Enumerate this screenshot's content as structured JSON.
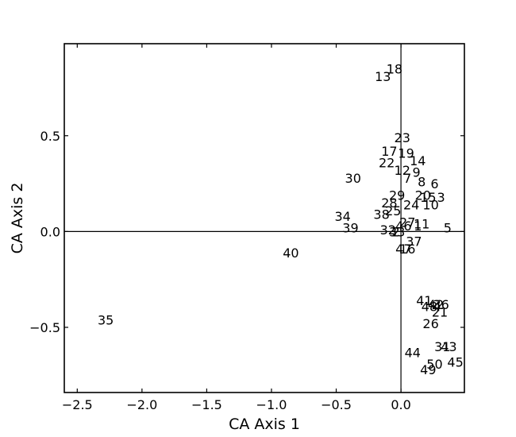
{
  "chart_data": {
    "type": "scatter",
    "title": "",
    "xlabel": "CA Axis 1",
    "ylabel": "CA Axis 2",
    "xlim": [
      -2.6,
      0.49
    ],
    "ylim": [
      -0.84,
      0.98
    ],
    "xticks": [
      -2.5,
      -2.0,
      -1.5,
      -1.0,
      -0.5,
      0.0
    ],
    "xtick_labels": [
      "−2.5",
      "−2.0",
      "−1.5",
      "−1.0",
      "−0.5",
      "0.0"
    ],
    "yticks": [
      -0.5,
      0.0,
      0.5
    ],
    "ytick_labels": [
      "−0.5",
      "0.0",
      "0.5"
    ],
    "reference_lines": {
      "x": 0.0,
      "y": 0.0
    },
    "grid": false,
    "legend": "none",
    "points": [
      {
        "label": "18",
        "x": -0.05,
        "y": 0.85
      },
      {
        "label": "13",
        "x": -0.14,
        "y": 0.81
      },
      {
        "label": "23",
        "x": 0.01,
        "y": 0.49
      },
      {
        "label": "17",
        "x": -0.09,
        "y": 0.42
      },
      {
        "label": "19",
        "x": 0.04,
        "y": 0.41
      },
      {
        "label": "14",
        "x": 0.13,
        "y": 0.37
      },
      {
        "label": "22",
        "x": -0.11,
        "y": 0.36
      },
      {
        "label": "12",
        "x": 0.01,
        "y": 0.32
      },
      {
        "label": "9",
        "x": 0.12,
        "y": 0.31
      },
      {
        "label": "7",
        "x": 0.05,
        "y": 0.28
      },
      {
        "label": "30",
        "x": -0.37,
        "y": 0.28
      },
      {
        "label": "8",
        "x": 0.16,
        "y": 0.26
      },
      {
        "label": "6",
        "x": 0.26,
        "y": 0.25
      },
      {
        "label": "20",
        "x": 0.17,
        "y": 0.19
      },
      {
        "label": "15",
        "x": 0.21,
        "y": 0.18
      },
      {
        "label": "3",
        "x": 0.31,
        "y": 0.18
      },
      {
        "label": "29",
        "x": -0.03,
        "y": 0.19
      },
      {
        "label": "28",
        "x": -0.09,
        "y": 0.15
      },
      {
        "label": "24",
        "x": 0.08,
        "y": 0.14
      },
      {
        "label": "10",
        "x": 0.23,
        "y": 0.14
      },
      {
        "label": "25",
        "x": -0.06,
        "y": 0.11
      },
      {
        "label": "34",
        "x": -0.45,
        "y": 0.08
      },
      {
        "label": "38",
        "x": -0.15,
        "y": 0.09
      },
      {
        "label": "27",
        "x": 0.05,
        "y": 0.05
      },
      {
        "label": "11",
        "x": 0.16,
        "y": 0.04
      },
      {
        "label": "46",
        "x": 0.02,
        "y": 0.03
      },
      {
        "label": "1",
        "x": 0.13,
        "y": 0.03
      },
      {
        "label": "5",
        "x": 0.36,
        "y": 0.02
      },
      {
        "label": "39",
        "x": -0.39,
        "y": 0.02
      },
      {
        "label": "32",
        "x": -0.1,
        "y": 0.01
      },
      {
        "label": "2",
        "x": -0.04,
        "y": 0.0
      },
      {
        "label": "33",
        "x": -0.03,
        "y": 0.0
      },
      {
        "label": "37",
        "x": 0.1,
        "y": -0.05
      },
      {
        "label": "47",
        "x": 0.02,
        "y": -0.09
      },
      {
        "label": "16",
        "x": 0.05,
        "y": -0.09
      },
      {
        "label": "40",
        "x": -0.85,
        "y": -0.11
      },
      {
        "label": "41",
        "x": 0.18,
        "y": -0.36
      },
      {
        "label": "42",
        "x": 0.27,
        "y": -0.38
      },
      {
        "label": "48",
        "x": 0.22,
        "y": -0.39
      },
      {
        "label": "36",
        "x": 0.31,
        "y": -0.38
      },
      {
        "label": "4",
        "x": 0.28,
        "y": -0.39
      },
      {
        "label": "21",
        "x": 0.3,
        "y": -0.42
      },
      {
        "label": "26",
        "x": 0.23,
        "y": -0.48
      },
      {
        "label": "35",
        "x": -2.28,
        "y": -0.46
      },
      {
        "label": "31",
        "x": 0.32,
        "y": -0.6
      },
      {
        "label": "43",
        "x": 0.37,
        "y": -0.6
      },
      {
        "label": "44",
        "x": 0.09,
        "y": -0.63
      },
      {
        "label": "50",
        "x": 0.26,
        "y": -0.69
      },
      {
        "label": "45",
        "x": 0.42,
        "y": -0.68
      },
      {
        "label": "49",
        "x": 0.21,
        "y": -0.72
      }
    ]
  }
}
